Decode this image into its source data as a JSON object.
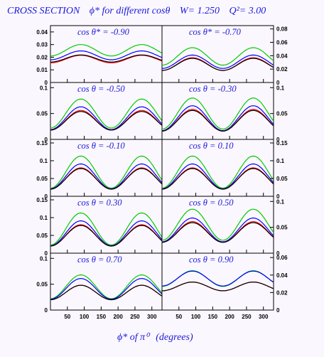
{
  "title": {
    "part1": "CROSS SECTION",
    "part2": "ϕ*  for different  cosθ",
    "part3": "W= 1.250",
    "part4": "Q²= 3.00"
  },
  "x_title": {
    "part1": "ϕ*  of  π⁰",
    "part2": "(degrees)"
  },
  "colors": {
    "green": "#00cc00",
    "blue": "#0000ff",
    "red": "#ff0000",
    "black": "#000000",
    "label": "#1b1bd6"
  },
  "chart_data": [
    {
      "type": "line",
      "label": "cos θ* = -0.90",
      "xlim": [
        0,
        330
      ],
      "ylim": [
        0,
        0.045
      ],
      "xticks": [
        "50",
        "100",
        "150",
        "200",
        "250",
        "300"
      ],
      "yticks": [
        "0",
        "0.01",
        "0.02",
        "0.03",
        "0.04"
      ],
      "y_axis_side": "left",
      "x": [
        0,
        90,
        180,
        270,
        360
      ],
      "series": [
        {
          "name": "green",
          "mean": 0.0255,
          "amp": 0.0045
        },
        {
          "name": "blue",
          "mean": 0.0215,
          "amp": 0.0035
        },
        {
          "name": "red",
          "mean": 0.0185,
          "amp": 0.003
        },
        {
          "name": "black",
          "mean": 0.019,
          "amp": 0.0028
        }
      ]
    },
    {
      "type": "line",
      "label": "cos θ* = -0.70",
      "xlim": [
        0,
        330
      ],
      "ylim": [
        0,
        0.085
      ],
      "xticks": [
        "50",
        "100",
        "150",
        "200",
        "250",
        "300"
      ],
      "yticks": [
        "0",
        "0.02",
        "0.04",
        "0.06",
        "0.08"
      ],
      "y_axis_side": "right",
      "series": [
        {
          "name": "green",
          "mean": 0.039,
          "amp": 0.013
        },
        {
          "name": "blue",
          "mean": 0.031,
          "amp": 0.01
        },
        {
          "name": "red",
          "mean": 0.0275,
          "amp": 0.0095
        },
        {
          "name": "black",
          "mean": 0.027,
          "amp": 0.009
        }
      ]
    },
    {
      "type": "line",
      "label": "cos θ = -0.50",
      "xlim": [
        0,
        330
      ],
      "ylim": [
        0,
        0.11
      ],
      "xticks": [
        "50",
        "100",
        "150",
        "200",
        "250",
        "300"
      ],
      "yticks": [
        "0",
        "0.05",
        "0.1"
      ],
      "y_axis_side": "left",
      "series": [
        {
          "name": "green",
          "mean": 0.05,
          "amp": 0.028
        },
        {
          "name": "blue",
          "mean": 0.041,
          "amp": 0.022
        },
        {
          "name": "red",
          "mean": 0.037,
          "amp": 0.019
        },
        {
          "name": "black",
          "mean": 0.036,
          "amp": 0.018
        }
      ]
    },
    {
      "type": "line",
      "label": "cos θ = -0.30",
      "xlim": [
        0,
        330
      ],
      "ylim": [
        0,
        0.11
      ],
      "xticks": [
        "50",
        "100",
        "150",
        "200",
        "250",
        "300"
      ],
      "yticks": [
        "0",
        "0.05",
        "0.1"
      ],
      "y_axis_side": "right",
      "series": [
        {
          "name": "green",
          "mean": 0.05,
          "amp": 0.03
        },
        {
          "name": "blue",
          "mean": 0.041,
          "amp": 0.024
        },
        {
          "name": "red",
          "mean": 0.037,
          "amp": 0.021
        },
        {
          "name": "black",
          "mean": 0.036,
          "amp": 0.02
        }
      ]
    },
    {
      "type": "line",
      "label": "cos θ = -0.10",
      "xlim": [
        0,
        330
      ],
      "ylim": [
        0,
        0.16
      ],
      "xticks": [
        "50",
        "100",
        "150",
        "200",
        "250",
        "300"
      ],
      "yticks": [
        "0",
        "0.05",
        "0.1",
        "0.15"
      ],
      "y_axis_side": "left",
      "series": [
        {
          "name": "green",
          "mean": 0.068,
          "amp": 0.045
        },
        {
          "name": "blue",
          "mean": 0.056,
          "amp": 0.035
        },
        {
          "name": "red",
          "mean": 0.05,
          "amp": 0.03
        },
        {
          "name": "black",
          "mean": 0.049,
          "amp": 0.029
        }
      ]
    },
    {
      "type": "line",
      "label": "cos θ = 0.10",
      "xlim": [
        0,
        330
      ],
      "ylim": [
        0,
        0.16
      ],
      "xticks": [
        "50",
        "100",
        "150",
        "200",
        "250",
        "300"
      ],
      "yticks": [
        "0",
        "0.05",
        "0.1",
        "0.15"
      ],
      "y_axis_side": "right",
      "series": [
        {
          "name": "green",
          "mean": 0.068,
          "amp": 0.045
        },
        {
          "name": "blue",
          "mean": 0.056,
          "amp": 0.035
        },
        {
          "name": "red",
          "mean": 0.05,
          "amp": 0.03
        },
        {
          "name": "black",
          "mean": 0.049,
          "amp": 0.029
        }
      ]
    },
    {
      "type": "line",
      "label": "cos θ = 0.30",
      "xlim": [
        0,
        330
      ],
      "ylim": [
        0,
        0.16
      ],
      "xticks": [
        "50",
        "100",
        "150",
        "200",
        "250",
        "300"
      ],
      "yticks": [
        "0",
        "0.05",
        "0.1",
        "0.15"
      ],
      "y_axis_side": "left",
      "series": [
        {
          "name": "green",
          "mean": 0.068,
          "amp": 0.045
        },
        {
          "name": "blue",
          "mean": 0.056,
          "amp": 0.035
        },
        {
          "name": "red",
          "mean": 0.05,
          "amp": 0.03
        },
        {
          "name": "black",
          "mean": 0.049,
          "amp": 0.029
        }
      ]
    },
    {
      "type": "line",
      "label": "cos θ = 0.50",
      "xlim": [
        0,
        330
      ],
      "ylim": [
        0,
        0.11
      ],
      "xticks": [
        "50",
        "100",
        "150",
        "200",
        "250",
        "300"
      ],
      "yticks": [
        "0",
        "0.05",
        "0.1"
      ],
      "y_axis_side": "right",
      "series": [
        {
          "name": "green",
          "mean": 0.055,
          "amp": 0.03
        },
        {
          "name": "blue",
          "mean": 0.045,
          "amp": 0.023
        },
        {
          "name": "red",
          "mean": 0.041,
          "amp": 0.02
        },
        {
          "name": "black",
          "mean": 0.04,
          "amp": 0.019
        }
      ]
    },
    {
      "type": "line",
      "label": "cos θ = 0.70",
      "xlim": [
        0,
        330
      ],
      "ylim": [
        0,
        0.11
      ],
      "xticks": [
        "50",
        "100",
        "150",
        "200",
        "250",
        "300"
      ],
      "yticks": [
        "0",
        "0.05",
        "0.1"
      ],
      "y_axis_side": "left",
      "series": [
        {
          "name": "green",
          "mean": 0.045,
          "amp": 0.023
        },
        {
          "name": "blue",
          "mean": 0.041,
          "amp": 0.02
        },
        {
          "name": "red",
          "mean": 0.034,
          "amp": 0.014
        },
        {
          "name": "black",
          "mean": 0.034,
          "amp": 0.014
        }
      ]
    },
    {
      "type": "line",
      "label": "cos θ = 0.90",
      "xlim": [
        0,
        330
      ],
      "ylim": [
        0,
        0.065
      ],
      "xticks": [
        "50",
        "100",
        "150",
        "200",
        "250",
        "300"
      ],
      "yticks": [
        "0",
        "0.02",
        "0.04",
        "0.06"
      ],
      "y_axis_side": "right",
      "series": [
        {
          "name": "green",
          "mean": 0.036,
          "amp": 0.009
        },
        {
          "name": "blue",
          "mean": 0.036,
          "amp": 0.0085
        },
        {
          "name": "red",
          "mean": 0.027,
          "amp": 0.005
        },
        {
          "name": "black",
          "mean": 0.027,
          "amp": 0.005
        }
      ]
    }
  ]
}
